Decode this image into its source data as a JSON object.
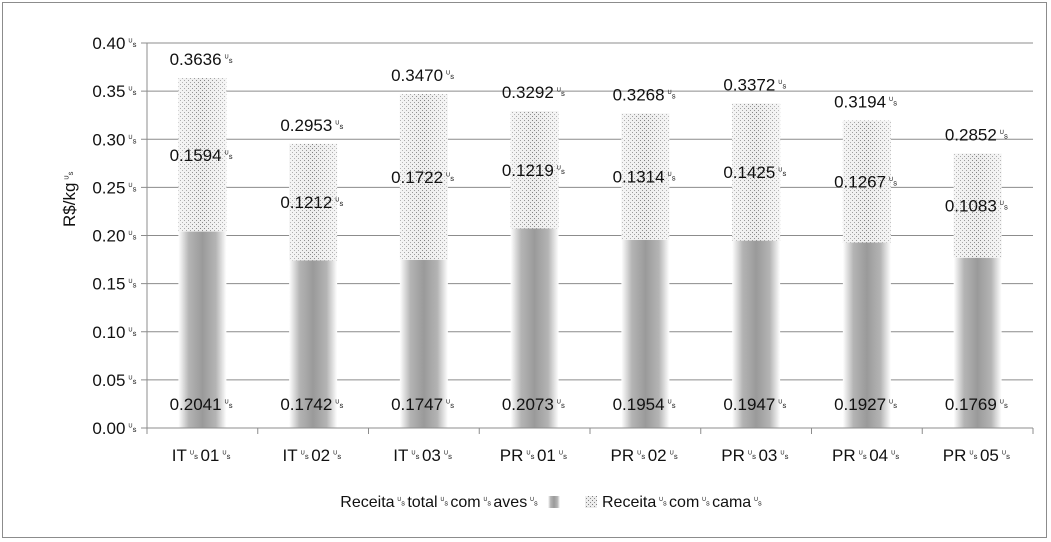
{
  "chart_data": {
    "type": "bar",
    "stacked": true,
    "categories": [
      "IT␟01␟",
      "IT␟02␟",
      "IT␟03␟",
      "PR␟01␟",
      "PR␟02␟",
      "PR␟03␟",
      "PR␟04␟",
      "PR␟05␟"
    ],
    "series": [
      {
        "name": "Receita␟total␟com␟aves␟",
        "values": [
          0.2041,
          0.1742,
          0.1747,
          0.2073,
          0.1954,
          0.1947,
          0.1927,
          0.1769
        ],
        "labels": [
          "0.2041␟",
          "0.1742␟",
          "0.1747␟",
          "0.2073␟",
          "0.1954␟",
          "0.1947␟",
          "0.1927␟",
          "0.1769␟"
        ],
        "color": "#a6a6a6",
        "pattern": "gradient"
      },
      {
        "name": "Receita␟com␟cama␟",
        "values": [
          0.1594,
          0.1212,
          0.1722,
          0.1219,
          0.1314,
          0.1425,
          0.1267,
          0.1083
        ],
        "labels": [
          "0.1594␟",
          "0.1212␟",
          "0.1722␟",
          "0.1219␟",
          "0.1314␟",
          "0.1425␟",
          "0.1267␟",
          "0.1083␟"
        ],
        "color": "#d9d9d9",
        "pattern": "dotted"
      }
    ],
    "totals": [
      0.3636,
      0.2953,
      0.347,
      0.3292,
      0.3268,
      0.3372,
      0.3194,
      0.2852
    ],
    "total_labels": [
      "0.3636␟",
      "0.2953␟",
      "0.3470␟",
      "0.3292␟",
      "0.3268␟",
      "0.3372␟",
      "0.3194␟",
      "0.2852␟"
    ],
    "ylabel": "R$/kg␟",
    "xlabel": "",
    "ylim": [
      0,
      0.4
    ],
    "yticks": [
      "0.00␟",
      "0.05␟",
      "0.10␟",
      "0.15␟",
      "0.20␟",
      "0.25␟",
      "0.30␟",
      "0.35␟",
      "0.40␟"
    ],
    "grid": true,
    "legend_position": "bottom"
  }
}
